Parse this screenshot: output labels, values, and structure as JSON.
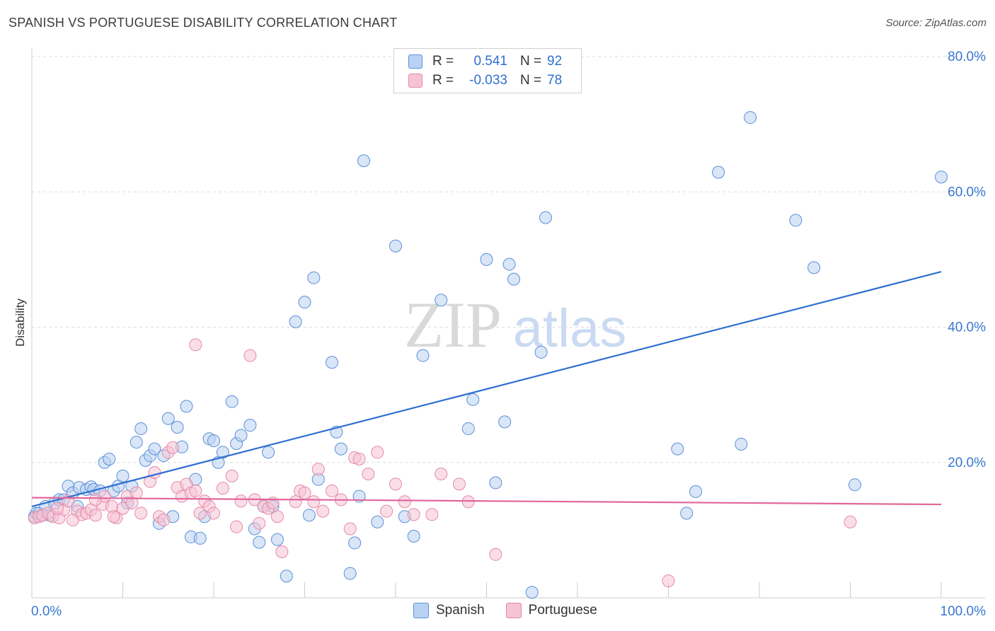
{
  "title": "SPANISH VS PORTUGUESE DISABILITY CORRELATION CHART",
  "source": "Source: ZipAtlas.com",
  "watermark": {
    "zip": "ZIP",
    "atlas": "atlas"
  },
  "legend": {
    "rows": [
      {
        "r_label": "R =",
        "r_value": "0.541",
        "n_label": "N =",
        "n_value": "92"
      },
      {
        "r_label": "R =",
        "r_value": "-0.033",
        "n_label": "N =",
        "n_value": "78"
      }
    ]
  },
  "colors": {
    "spanish_fill": "#b9d2f3",
    "spanish_stroke": "#5b8fd6",
    "spanish_line": "#2f6fd0",
    "portuguese_fill": "#f6c3d3",
    "portuguese_stroke": "#e58aa8",
    "portuguese_line": "#e0679a",
    "tick_label": "#3a78d0",
    "grid": "#dddddd"
  },
  "chart_data": {
    "type": "scatter",
    "title": "SPANISH VS PORTUGUESE DISABILITY CORRELATION CHART",
    "xlabel": "",
    "ylabel": "Disability",
    "xlim": [
      0,
      100
    ],
    "ylim": [
      0,
      80
    ],
    "x_tick_labels": [
      "0.0%",
      "100.0%"
    ],
    "y_ticks": [
      20,
      40,
      60,
      80
    ],
    "y_tick_labels": [
      "20.0%",
      "40.0%",
      "60.0%",
      "80.0%"
    ],
    "grid": "horizontal dashed",
    "legend_position": "top-center and bottom",
    "series": [
      {
        "name": "Spanish",
        "R": 0.541,
        "N": 92,
        "trend": {
          "x": [
            0,
            100
          ],
          "y": [
            13.5,
            48.2
          ]
        },
        "points": [
          [
            0.3,
            12
          ],
          [
            0.5,
            12.5
          ],
          [
            0.8,
            12.5
          ],
          [
            1.2,
            12.2
          ],
          [
            1.5,
            13.5
          ],
          [
            2,
            12.2
          ],
          [
            2.5,
            14
          ],
          [
            3,
            14.5
          ],
          [
            3.5,
            14.5
          ],
          [
            4,
            16.5
          ],
          [
            4.5,
            15.5
          ],
          [
            5,
            13.5
          ],
          [
            5.2,
            16.3
          ],
          [
            6,
            16
          ],
          [
            6.5,
            16.4
          ],
          [
            6.8,
            16
          ],
          [
            7.5,
            15.8
          ],
          [
            8,
            20
          ],
          [
            8.5,
            20.5
          ],
          [
            9,
            15.8
          ],
          [
            9.5,
            16.5
          ],
          [
            10,
            18
          ],
          [
            10.5,
            14
          ],
          [
            11,
            16.5
          ],
          [
            11.5,
            23
          ],
          [
            12,
            25
          ],
          [
            12.5,
            20.3
          ],
          [
            13,
            21
          ],
          [
            13.5,
            22
          ],
          [
            14,
            11
          ],
          [
            14.5,
            21
          ],
          [
            15,
            26.5
          ],
          [
            15.5,
            12
          ],
          [
            16,
            25.2
          ],
          [
            16.5,
            22.3
          ],
          [
            17,
            28.3
          ],
          [
            17.5,
            9
          ],
          [
            18,
            17.5
          ],
          [
            18.5,
            8.8
          ],
          [
            19,
            12
          ],
          [
            19.5,
            23.5
          ],
          [
            20,
            23.2
          ],
          [
            20.5,
            20
          ],
          [
            21,
            21.5
          ],
          [
            22,
            29
          ],
          [
            22.5,
            22.8
          ],
          [
            23,
            24
          ],
          [
            24,
            25.5
          ],
          [
            24.5,
            10.2
          ],
          [
            25,
            8.2
          ],
          [
            25.5,
            13.5
          ],
          [
            26,
            21.5
          ],
          [
            26.5,
            13.5
          ],
          [
            27,
            8.6
          ],
          [
            28,
            3.2
          ],
          [
            29,
            40.8
          ],
          [
            30,
            43.7
          ],
          [
            30.5,
            12.2
          ],
          [
            31,
            47.3
          ],
          [
            31.5,
            17.5
          ],
          [
            33,
            34.8
          ],
          [
            33.5,
            24.5
          ],
          [
            34,
            22
          ],
          [
            35,
            3.6
          ],
          [
            35.5,
            8.1
          ],
          [
            36,
            15
          ],
          [
            36.5,
            64.6
          ],
          [
            38,
            11.2
          ],
          [
            40,
            52
          ],
          [
            41,
            12
          ],
          [
            42,
            9.1
          ],
          [
            43,
            35.8
          ],
          [
            45,
            44
          ],
          [
            48,
            25
          ],
          [
            48.5,
            29.3
          ],
          [
            50,
            50
          ],
          [
            51,
            17
          ],
          [
            52,
            26
          ],
          [
            52.5,
            49.3
          ],
          [
            53,
            47.1
          ],
          [
            55,
            0.8
          ],
          [
            56,
            36.3
          ],
          [
            56.5,
            56.2
          ],
          [
            71,
            22
          ],
          [
            72,
            12.5
          ],
          [
            73,
            15.7
          ],
          [
            75.5,
            62.9
          ],
          [
            78,
            22.7
          ],
          [
            79,
            71
          ],
          [
            84,
            55.8
          ],
          [
            86,
            48.8
          ],
          [
            90.5,
            16.7
          ],
          [
            100,
            62.2
          ]
        ]
      },
      {
        "name": "Portuguese",
        "R": -0.033,
        "N": 78,
        "trend": {
          "x": [
            0,
            100
          ],
          "y": [
            14.8,
            13.8
          ]
        },
        "points": [
          [
            0.3,
            11.8
          ],
          [
            0.8,
            12
          ],
          [
            1.2,
            12.2
          ],
          [
            1.8,
            12.5
          ],
          [
            2.3,
            12
          ],
          [
            3,
            11.8
          ],
          [
            3.5,
            13
          ],
          [
            4,
            14.3
          ],
          [
            5,
            12.8
          ],
          [
            5.5,
            12.3
          ],
          [
            6,
            12.5
          ],
          [
            6.5,
            13
          ],
          [
            7,
            12.2
          ],
          [
            7.8,
            13.8
          ],
          [
            8,
            15
          ],
          [
            8.8,
            13.5
          ],
          [
            9.3,
            11.8
          ],
          [
            10,
            13.2
          ],
          [
            10.5,
            15
          ],
          [
            11,
            14
          ],
          [
            11.5,
            15.5
          ],
          [
            12,
            12.5
          ],
          [
            13,
            17.2
          ],
          [
            13.5,
            18.5
          ],
          [
            14,
            12
          ],
          [
            14.5,
            11.5
          ],
          [
            15,
            21.5
          ],
          [
            15.5,
            22.2
          ],
          [
            16,
            16.3
          ],
          [
            16.5,
            15
          ],
          [
            17,
            16.8
          ],
          [
            17.5,
            15.5
          ],
          [
            18,
            15.8
          ],
          [
            18.5,
            12.5
          ],
          [
            19,
            14.3
          ],
          [
            19.5,
            13.5
          ],
          [
            20,
            12.5
          ],
          [
            21,
            16.2
          ],
          [
            22,
            18
          ],
          [
            22.5,
            10.5
          ],
          [
            23,
            14.3
          ],
          [
            24,
            35.8
          ],
          [
            24.5,
            14.5
          ],
          [
            25,
            11
          ],
          [
            25.5,
            13.5
          ],
          [
            26,
            13.2
          ],
          [
            26.5,
            14
          ],
          [
            27,
            12
          ],
          [
            27.5,
            6.8
          ],
          [
            29,
            14.2
          ],
          [
            29.5,
            15.8
          ],
          [
            30,
            15.5
          ],
          [
            31,
            14.2
          ],
          [
            31.5,
            19
          ],
          [
            32,
            12.8
          ],
          [
            33,
            15.8
          ],
          [
            34,
            14.5
          ],
          [
            35,
            10.2
          ],
          [
            35.5,
            20.7
          ],
          [
            36,
            20.5
          ],
          [
            37,
            18.3
          ],
          [
            38,
            21.5
          ],
          [
            39,
            12.8
          ],
          [
            40,
            16.8
          ],
          [
            41,
            14.2
          ],
          [
            42,
            12.3
          ],
          [
            44,
            12.3
          ],
          [
            45,
            18.3
          ],
          [
            47,
            16.8
          ],
          [
            48,
            14.2
          ],
          [
            51,
            6.4
          ],
          [
            70,
            2.5
          ],
          [
            90,
            11.2
          ],
          [
            18,
            37.4
          ],
          [
            9,
            12
          ],
          [
            4.5,
            11.5
          ],
          [
            2.8,
            13.2
          ],
          [
            7,
            14.5
          ]
        ]
      }
    ]
  },
  "bottom_legend": [
    {
      "label": "Spanish"
    },
    {
      "label": "Portuguese"
    }
  ]
}
